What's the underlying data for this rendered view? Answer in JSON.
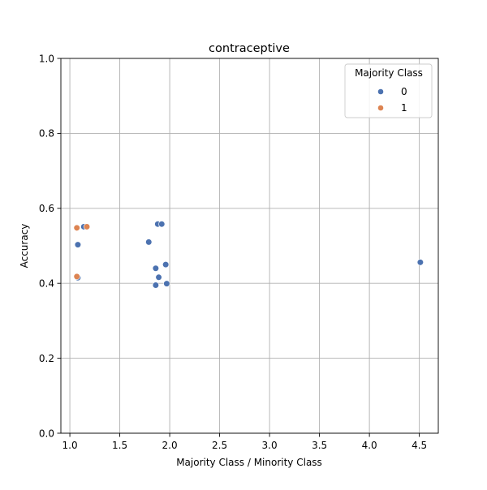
{
  "chart_data": {
    "type": "scatter",
    "title": "contraceptive",
    "xlabel": "Majority Class / Minority Class",
    "ylabel": "Accuracy",
    "xlim": [
      0.91,
      4.69
    ],
    "ylim": [
      0.0,
      1.0
    ],
    "xticks": [
      "1.0",
      "1.5",
      "2.0",
      "2.5",
      "3.0",
      "3.5",
      "4.0",
      "4.5"
    ],
    "xtick_values": [
      1.0,
      1.5,
      2.0,
      2.5,
      3.0,
      3.5,
      4.0,
      4.5
    ],
    "yticks": [
      "0.0",
      "0.2",
      "0.4",
      "0.6",
      "0.8",
      "1.0"
    ],
    "ytick_values": [
      0.0,
      0.2,
      0.4,
      0.6,
      0.8,
      1.0
    ],
    "grid": true,
    "legend": {
      "title": "Majority Class",
      "placement": "top-right",
      "entries": [
        "0",
        "1"
      ]
    },
    "series": [
      {
        "name": "0",
        "color": "#4c72b0",
        "points": [
          {
            "x": 1.08,
            "y": 0.503
          },
          {
            "x": 1.08,
            "y": 0.415
          },
          {
            "x": 1.14,
            "y": 0.551
          },
          {
            "x": 1.79,
            "y": 0.51
          },
          {
            "x": 1.86,
            "y": 0.44
          },
          {
            "x": 1.86,
            "y": 0.395
          },
          {
            "x": 1.88,
            "y": 0.558
          },
          {
            "x": 1.89,
            "y": 0.416
          },
          {
            "x": 1.92,
            "y": 0.558
          },
          {
            "x": 1.96,
            "y": 0.45
          },
          {
            "x": 1.97,
            "y": 0.399
          },
          {
            "x": 4.51,
            "y": 0.456
          }
        ]
      },
      {
        "name": "1",
        "color": "#dd8452",
        "points": [
          {
            "x": 1.07,
            "y": 0.548
          },
          {
            "x": 1.07,
            "y": 0.418
          },
          {
            "x": 1.17,
            "y": 0.551
          }
        ]
      }
    ]
  }
}
